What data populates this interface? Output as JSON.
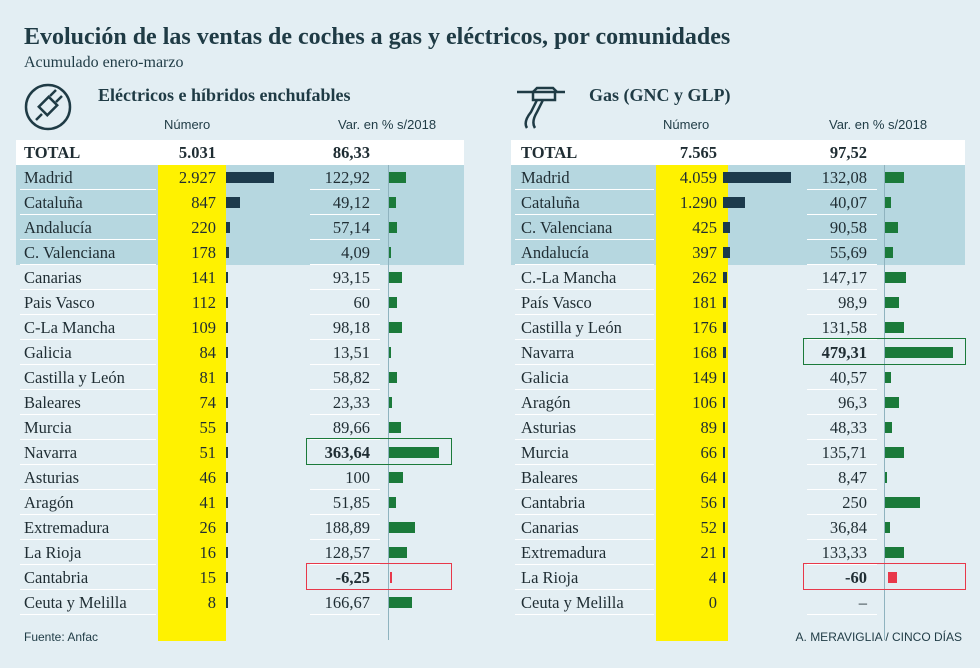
{
  "title": "Evolución de las ventas de coches a gas y eléctricos, por comunidades",
  "subtitle": "Acumulado enero-marzo",
  "source": "Fuente: Anfac",
  "credit": "A. MERAVIGLIA / CINCO DÍAS",
  "colors": {
    "background": "#e3eef3",
    "highlight_band": "#b6d7e0",
    "number_column": "#fff200",
    "number_bar": "#1c3a4c",
    "positive_bar": "#1b7a3a",
    "negative_bar": "#e8384a"
  },
  "chart_data": [
    {
      "type": "table",
      "title": "Eléctricos e híbridos enchufables",
      "icon": "electric-plug-icon",
      "columns": [
        "Número",
        "Var. en % s/2018"
      ],
      "total": {
        "label": "TOTAL",
        "number": "5.031",
        "var": "86,33"
      },
      "highlighted_rows": 4,
      "max_number": 2927,
      "max_var": 363.64,
      "highlight_var_boxes": [
        "Navarra",
        "Cantabria"
      ],
      "rows": [
        {
          "name": "Madrid",
          "number": "2.927",
          "value": 2927,
          "var": "122,92",
          "var_value": 122.92
        },
        {
          "name": "Cataluña",
          "number": "847",
          "value": 847,
          "var": "49,12",
          "var_value": 49.12
        },
        {
          "name": "Andalucía",
          "number": "220",
          "value": 220,
          "var": "57,14",
          "var_value": 57.14
        },
        {
          "name": "C. Valenciana",
          "number": "178",
          "value": 178,
          "var": "4,09",
          "var_value": 4.09
        },
        {
          "name": "Canarias",
          "number": "141",
          "value": 141,
          "var": "93,15",
          "var_value": 93.15
        },
        {
          "name": "Pais Vasco",
          "number": "112",
          "value": 112,
          "var": "60",
          "var_value": 60
        },
        {
          "name": "C-La Mancha",
          "number": "109",
          "value": 109,
          "var": "98,18",
          "var_value": 98.18
        },
        {
          "name": "Galicia",
          "number": "84",
          "value": 84,
          "var": "13,51",
          "var_value": 13.51
        },
        {
          "name": "Castilla y León",
          "number": "81",
          "value": 81,
          "var": "58,82",
          "var_value": 58.82
        },
        {
          "name": "Baleares",
          "number": "74",
          "value": 74,
          "var": "23,33",
          "var_value": 23.33
        },
        {
          "name": "Murcia",
          "number": "55",
          "value": 55,
          "var": "89,66",
          "var_value": 89.66
        },
        {
          "name": "Navarra",
          "number": "51",
          "value": 51,
          "var": "363,64",
          "var_value": 363.64
        },
        {
          "name": "Asturias",
          "number": "46",
          "value": 46,
          "var": "100",
          "var_value": 100
        },
        {
          "name": "Aragón",
          "number": "41",
          "value": 41,
          "var": "51,85",
          "var_value": 51.85
        },
        {
          "name": "Extremadura",
          "number": "26",
          "value": 26,
          "var": "188,89",
          "var_value": 188.89
        },
        {
          "name": "La Rioja",
          "number": "16",
          "value": 16,
          "var": "128,57",
          "var_value": 128.57
        },
        {
          "name": "Cantabria",
          "number": "15",
          "value": 15,
          "var": "-6,25",
          "var_value": -6.25
        },
        {
          "name": "Ceuta y Melilla",
          "number": "8",
          "value": 8,
          "var": "166,67",
          "var_value": 166.67
        }
      ]
    },
    {
      "type": "table",
      "title": "Gas (GNC y GLP)",
      "icon": "gas-pump-icon",
      "columns": [
        "Número",
        "Var. en % s/2018"
      ],
      "total": {
        "label": "TOTAL",
        "number": "7.565",
        "var": "97,52"
      },
      "highlighted_rows": 4,
      "max_number": 4059,
      "max_var": 479.31,
      "highlight_var_boxes": [
        "Navarra",
        "La Rioja"
      ],
      "rows": [
        {
          "name": "Madrid",
          "number": "4.059",
          "value": 4059,
          "var": "132,08",
          "var_value": 132.08
        },
        {
          "name": "Cataluña",
          "number": "1.290",
          "value": 1290,
          "var": "40,07",
          "var_value": 40.07
        },
        {
          "name": "C. Valenciana",
          "number": "425",
          "value": 425,
          "var": "90,58",
          "var_value": 90.58
        },
        {
          "name": "Andalucía",
          "number": "397",
          "value": 397,
          "var": "55,69",
          "var_value": 55.69
        },
        {
          "name": "C.-La Mancha",
          "number": "262",
          "value": 262,
          "var": "147,17",
          "var_value": 147.17
        },
        {
          "name": "País Vasco",
          "number": "181",
          "value": 181,
          "var": "98,9",
          "var_value": 98.9
        },
        {
          "name": "Castilla y León",
          "number": "176",
          "value": 176,
          "var": "131,58",
          "var_value": 131.58
        },
        {
          "name": "Navarra",
          "number": "168",
          "value": 168,
          "var": "479,31",
          "var_value": 479.31
        },
        {
          "name": "Galicia",
          "number": "149",
          "value": 149,
          "var": "40,57",
          "var_value": 40.57
        },
        {
          "name": "Aragón",
          "number": "106",
          "value": 106,
          "var": "96,3",
          "var_value": 96.3
        },
        {
          "name": "Asturias",
          "number": "89",
          "value": 89,
          "var": "48,33",
          "var_value": 48.33
        },
        {
          "name": "Murcia",
          "number": "66",
          "value": 66,
          "var": "135,71",
          "var_value": 135.71
        },
        {
          "name": "Baleares",
          "number": "64",
          "value": 64,
          "var": "8,47",
          "var_value": 8.47
        },
        {
          "name": "Cantabria",
          "number": "56",
          "value": 56,
          "var": "250",
          "var_value": 250
        },
        {
          "name": "Canarias",
          "number": "52",
          "value": 52,
          "var": "36,84",
          "var_value": 36.84
        },
        {
          "name": "Extremadura",
          "number": "21",
          "value": 21,
          "var": "133,33",
          "var_value": 133.33
        },
        {
          "name": "La Rioja",
          "number": "4",
          "value": 4,
          "var": "-60",
          "var_value": -60
        },
        {
          "name": "Ceuta y Melilla",
          "number": "0",
          "value": 0,
          "var": "–",
          "var_value": null
        }
      ]
    }
  ]
}
